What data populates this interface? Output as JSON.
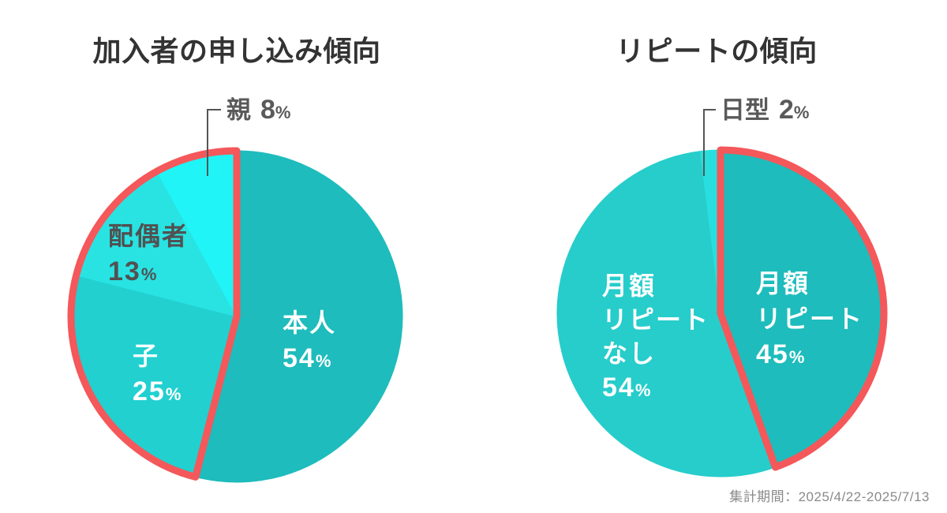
{
  "chart_data": [
    {
      "type": "pie",
      "title": "加入者の申し込み傾向",
      "start_angle_deg": 0,
      "direction": "clockwise",
      "percent_symbol": "%",
      "outline_color": "#f4585a",
      "legend_position": "labels-on-slices",
      "slices": [
        {
          "label": "本人",
          "label_lines": [
            "本人"
          ],
          "value": 54,
          "color": "#1ebcbc",
          "text_color": "#ffffff",
          "highlighted": false,
          "callout": false
        },
        {
          "label": "子",
          "label_lines": [
            "子"
          ],
          "value": 25,
          "color": "#22d0d0",
          "text_color": "#ffffff",
          "highlighted": true,
          "callout": false
        },
        {
          "label": "配偶者",
          "label_lines": [
            "配偶者"
          ],
          "value": 13,
          "color": "#29e3e3",
          "text_color": "#515151",
          "highlighted": true,
          "callout": false
        },
        {
          "label": "親",
          "label_lines": [
            "親"
          ],
          "value": 8,
          "color": "#20f4f6",
          "text_color": "#5a5a5a",
          "highlighted": true,
          "callout": true
        }
      ]
    },
    {
      "type": "pie",
      "title": "リピートの傾向",
      "start_angle_deg": 0,
      "direction": "clockwise",
      "percent_symbol": "%",
      "outline_color": "#f4585a",
      "legend_position": "labels-on-slices",
      "slices": [
        {
          "label": "月額リピート",
          "label_lines": [
            "月額",
            "リピート"
          ],
          "value": 45,
          "color": "#1ebcbc",
          "text_color": "#ffffff",
          "highlighted": true,
          "callout": false
        },
        {
          "label": "月額リピートなし",
          "label_lines": [
            "月額",
            "リピート",
            "なし"
          ],
          "value": 54,
          "color": "#26cdcb",
          "text_color": "#ffffff",
          "highlighted": false,
          "callout": false
        },
        {
          "label": "日型",
          "label_lines": [
            "日型"
          ],
          "value": 2,
          "color": "#28dede",
          "text_color": "#5a5a5a",
          "highlighted": false,
          "callout": true
        }
      ]
    }
  ],
  "footer": {
    "text": "集計期間：2025/4/22-2025/7/13"
  }
}
